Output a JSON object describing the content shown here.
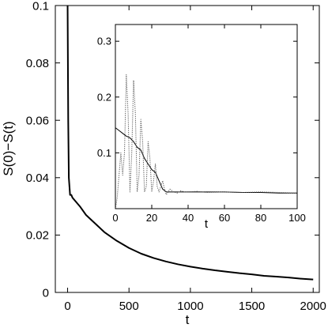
{
  "chart_data": [
    {
      "type": "line",
      "panel": "main",
      "xlabel": "t",
      "ylabel": "S(0)−S(t)",
      "xlim": [
        -100,
        2050
      ],
      "ylim": [
        0,
        0.1
      ],
      "x_ticks": [
        0,
        500,
        1000,
        1500,
        2000
      ],
      "x_tick_labels": [
        "0",
        "500",
        "1000",
        "1500",
        "2000"
      ],
      "y_ticks": [
        0,
        0.02,
        0.04,
        0.06,
        0.08,
        0.1
      ],
      "y_tick_labels": [
        "0",
        "0.02",
        "0.04",
        "0.06",
        "0.08",
        "0.1"
      ],
      "grid": false,
      "series": [
        {
          "style": "solid",
          "color": "#000000",
          "x": [
            0,
            5,
            10,
            20,
            30,
            40,
            60,
            80,
            100,
            150,
            200,
            300,
            400,
            500,
            600,
            700,
            800,
            900,
            1000,
            1100,
            1200,
            1300,
            1400,
            1500,
            1600,
            1700,
            1800,
            1900,
            2000
          ],
          "y": [
            0.1,
            0.06,
            0.04,
            0.034,
            0.034,
            0.033,
            0.032,
            0.031,
            0.03,
            0.027,
            0.025,
            0.021,
            0.018,
            0.0155,
            0.0135,
            0.012,
            0.0108,
            0.0098,
            0.009,
            0.0083,
            0.0077,
            0.0072,
            0.0067,
            0.0063,
            0.0058,
            0.0055,
            0.0052,
            0.0048,
            0.0045
          ]
        }
      ]
    },
    {
      "type": "line",
      "panel": "inset",
      "xlabel": "t",
      "ylabel": "",
      "xlim": [
        0,
        100
      ],
      "ylim": [
        0,
        0.33
      ],
      "x_ticks": [
        0,
        20,
        40,
        60,
        80,
        100
      ],
      "x_tick_labels": [
        "0",
        "20",
        "40",
        "60",
        "80",
        "100"
      ],
      "y_ticks": [
        0.1,
        0.2,
        0.3
      ],
      "y_tick_labels": [
        "0.1",
        "0.2",
        "0.3"
      ],
      "grid": false,
      "series": [
        {
          "style": "solid",
          "color": "#000000",
          "x": [
            0,
            2,
            4,
            6,
            8,
            10,
            12,
            14,
            16,
            18,
            20,
            22,
            24,
            26,
            28,
            30,
            35,
            40,
            50,
            60,
            70,
            80,
            90,
            100
          ],
          "y": [
            0.145,
            0.14,
            0.135,
            0.13,
            0.127,
            0.12,
            0.11,
            0.105,
            0.09,
            0.08,
            0.07,
            0.065,
            0.05,
            0.035,
            0.03,
            0.03,
            0.03,
            0.03,
            0.03,
            0.03,
            0.029,
            0.029,
            0.028,
            0.028
          ]
        },
        {
          "style": "dotted",
          "color": "#555555",
          "x": [
            0,
            1,
            2,
            3,
            4,
            5,
            6,
            7,
            8,
            9,
            10,
            11,
            12,
            13,
            14,
            15,
            16,
            17,
            18,
            19,
            20,
            21,
            22,
            23,
            24,
            25,
            26,
            27,
            28,
            29,
            30,
            32,
            34,
            36,
            38,
            40,
            45,
            50,
            60,
            70,
            80,
            90,
            100
          ],
          "y": [
            0.0,
            0.02,
            0.06,
            0.1,
            0.06,
            0.1,
            0.24,
            0.17,
            0.03,
            0.1,
            0.23,
            0.17,
            0.03,
            0.06,
            0.16,
            0.12,
            0.03,
            0.04,
            0.12,
            0.09,
            0.03,
            0.05,
            0.08,
            0.04,
            0.03,
            0.04,
            0.05,
            0.035,
            0.025,
            0.03,
            0.035,
            0.03,
            0.028,
            0.032,
            0.03,
            0.03,
            0.031,
            0.029,
            0.03,
            0.029,
            0.03,
            0.029,
            0.028
          ]
        }
      ]
    }
  ]
}
